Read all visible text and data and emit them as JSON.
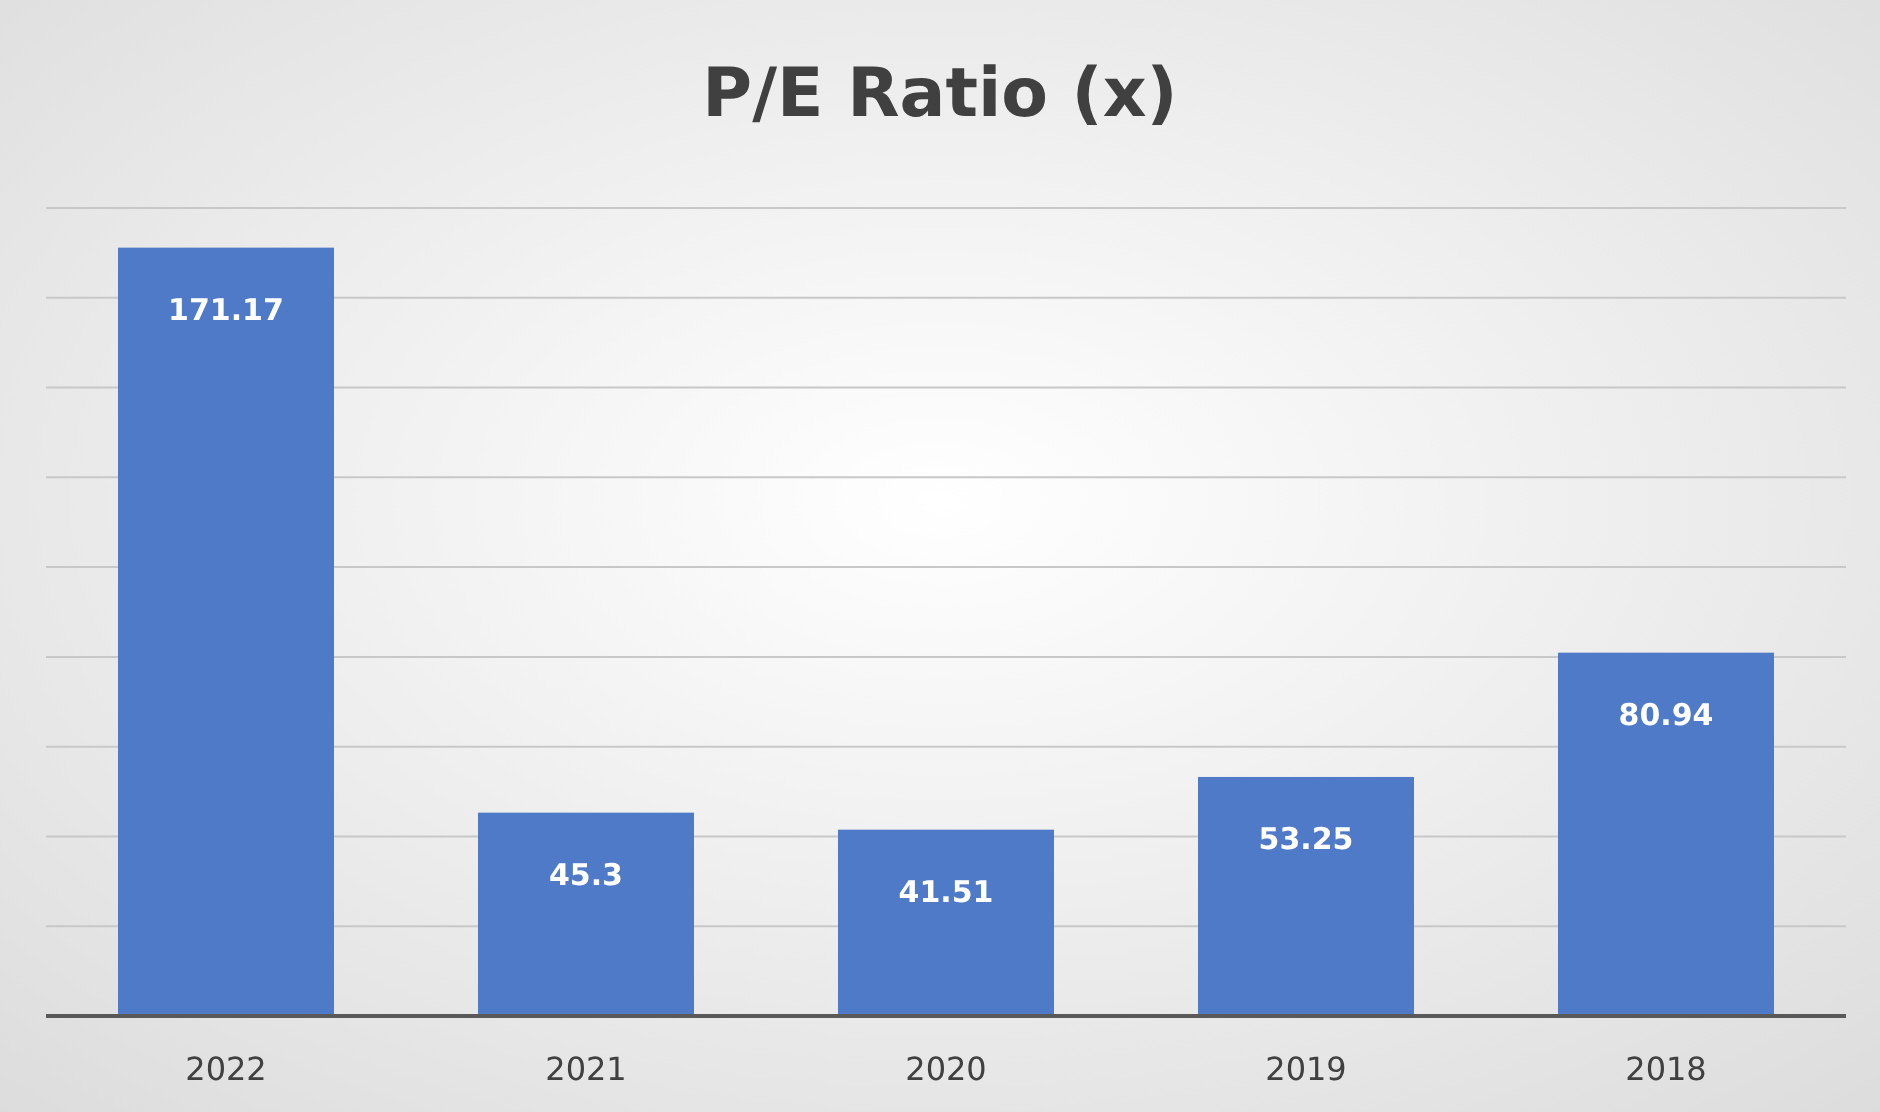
{
  "chart_data": {
    "type": "bar",
    "title": "P/E Ratio (x)",
    "categories": [
      "2022",
      "2021",
      "2020",
      "2019",
      "2018"
    ],
    "values": [
      171.17,
      45.3,
      41.51,
      53.25,
      80.94
    ],
    "color": "#4f7ac7",
    "ylim": [
      0,
      180
    ],
    "yticks": [
      {
        "value": 0,
        "label": null
      },
      {
        "value": 20,
        "label": null
      },
      {
        "value": 40,
        "label": null
      },
      {
        "value": 60,
        "label": null
      },
      {
        "value": 80,
        "label": null
      },
      {
        "value": 100,
        "label": null
      },
      {
        "value": 120,
        "label": null
      },
      {
        "value": 140,
        "label": null
      },
      {
        "value": 160,
        "label": null
      },
      {
        "value": 180,
        "label": null
      }
    ],
    "grid": "y",
    "tick_labels": "x",
    "data_labels": true
  }
}
